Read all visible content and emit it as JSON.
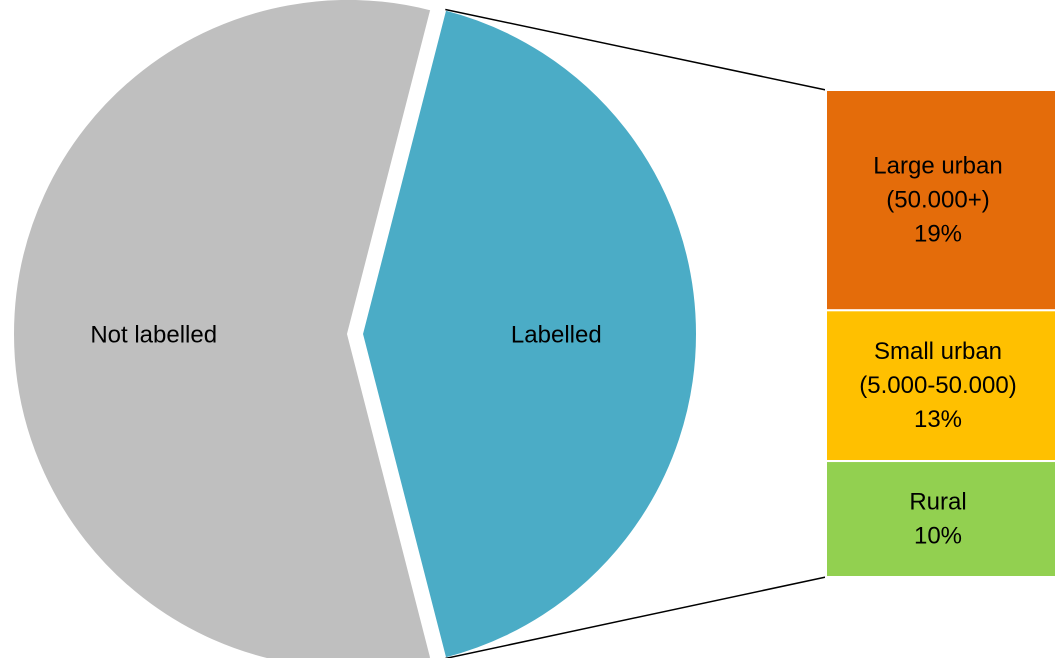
{
  "chart_data": {
    "type": "pie",
    "subtype": "bar-of-pie",
    "title": "",
    "slices": [
      {
        "label": "Not labelled",
        "value": 58,
        "color": "#bfbfbf"
      },
      {
        "label": "Labelled",
        "value": 42,
        "color": "#4bacc6",
        "exploded": true
      }
    ],
    "breakdown": {
      "of": "Labelled",
      "segments": [
        {
          "label_lines": [
            "Large urban",
            "(50.000+)"
          ],
          "value": 19,
          "value_label": "19%",
          "color": "#e46c0a"
        },
        {
          "label_lines": [
            "Small urban",
            "(5.000-50.000)"
          ],
          "value": 13,
          "value_label": "13%",
          "color": "#ffc000"
        },
        {
          "label_lines": [
            "Rural"
          ],
          "value": 10,
          "value_label": "10%",
          "color": "#92d050"
        }
      ]
    },
    "legend": "none"
  }
}
